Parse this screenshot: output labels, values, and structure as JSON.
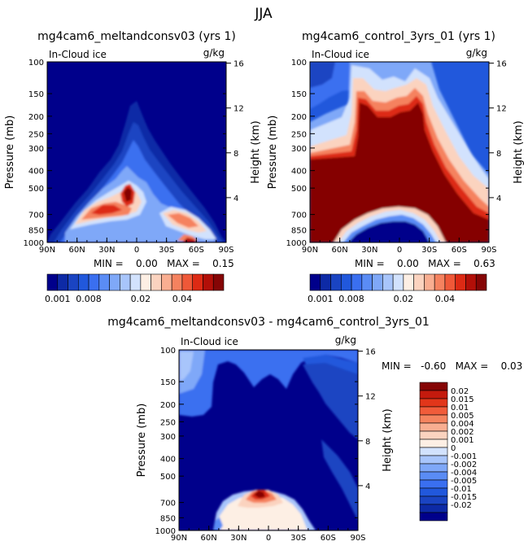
{
  "page_title": "JJA",
  "chart_data": [
    {
      "type": "heatmap",
      "title": "mg4cam6_meltandconsv03 (yrs 1)",
      "subtitle_left": "In-Cloud ice",
      "subtitle_right": "g/kg",
      "xlabel": "",
      "ylabel": "Pressure (mb)",
      "ylabel_right": "Height (km)",
      "x_ticks": [
        "90N",
        "60N",
        "30N",
        "0",
        "30S",
        "60S",
        "90S"
      ],
      "y_ticks": [
        "100",
        "150",
        "200",
        "250",
        "300",
        "400",
        "500",
        "700",
        "850",
        "1000"
      ],
      "y_right_ticks": [
        "16",
        "12",
        "8",
        "4"
      ],
      "ylim": [
        1000,
        100
      ],
      "y_scale": "log",
      "stats": "MIN =    0.00   MAX =    0.15",
      "min": 0.0,
      "max": 0.15
    },
    {
      "type": "heatmap",
      "title": "mg4cam6_control_3yrs_01 (yrs 1)",
      "subtitle_left": "In-Cloud ice",
      "subtitle_right": "g/kg",
      "xlabel": "",
      "ylabel": "Pressure (mb)",
      "ylabel_right": "Height (km)",
      "x_ticks": [
        "90N",
        "60N",
        "30N",
        "0",
        "30S",
        "60S",
        "90S"
      ],
      "y_ticks": [
        "100",
        "150",
        "200",
        "250",
        "300",
        "400",
        "500",
        "700",
        "850",
        "1000"
      ],
      "y_right_ticks": [
        "16",
        "12",
        "8",
        "4"
      ],
      "ylim": [
        1000,
        100
      ],
      "y_scale": "log",
      "stats": "MIN =    0.00   MAX =    0.63",
      "min": 0.0,
      "max": 0.63
    },
    {
      "type": "heatmap",
      "title": "mg4cam6_meltandconsv03 - mg4cam6_control_3yrs_01",
      "subtitle_left": "In-Cloud ice",
      "subtitle_right": "g/kg",
      "xlabel": "",
      "ylabel": "Pressure (mb)",
      "ylabel_right": "Height (km)",
      "x_ticks": [
        "90N",
        "60N",
        "30N",
        "0",
        "30S",
        "60S",
        "90S"
      ],
      "y_ticks": [
        "100",
        "150",
        "200",
        "250",
        "300",
        "400",
        "500",
        "700",
        "850",
        "1000"
      ],
      "y_right_ticks": [
        "16",
        "12",
        "8",
        "4"
      ],
      "ylim": [
        1000,
        100
      ],
      "y_scale": "log",
      "stats": "MIN =   -0.60   MAX =    0.03",
      "min": -0.6,
      "max": 0.03
    }
  ],
  "colorbar_top": {
    "colors": [
      "#00008b",
      "#0d2aa6",
      "#1a44c2",
      "#2158dc",
      "#3a6ff0",
      "#5a8cf5",
      "#7fa8f8",
      "#a8c5fb",
      "#d2e2fd",
      "#fdefe4",
      "#fbd3bf",
      "#f9ae91",
      "#f5825f",
      "#ef5838",
      "#dd2a14",
      "#b20f08",
      "#850505"
    ],
    "labels": [
      "0.001",
      "0.008",
      "0.02",
      "0.04"
    ]
  },
  "colorbar_diff": {
    "colors": [
      "#850505",
      "#c41a0d",
      "#e2361a",
      "#f15c3a",
      "#f5845f",
      "#f9ae91",
      "#fbd3bf",
      "#fdefe4",
      "#d2e2fd",
      "#a8c5fb",
      "#7fa8f8",
      "#5a8cf5",
      "#3a6ff0",
      "#2158dc",
      "#1a44c2",
      "#0d2aa6",
      "#00008b"
    ],
    "labels": [
      "0.02",
      "0.015",
      "0.01",
      "0.005",
      "0.004",
      "0.002",
      "0.001",
      "0",
      "-0.001",
      "-0.002",
      "-0.004",
      "-0.005",
      "-0.01",
      "-0.015",
      "-0.02"
    ]
  }
}
